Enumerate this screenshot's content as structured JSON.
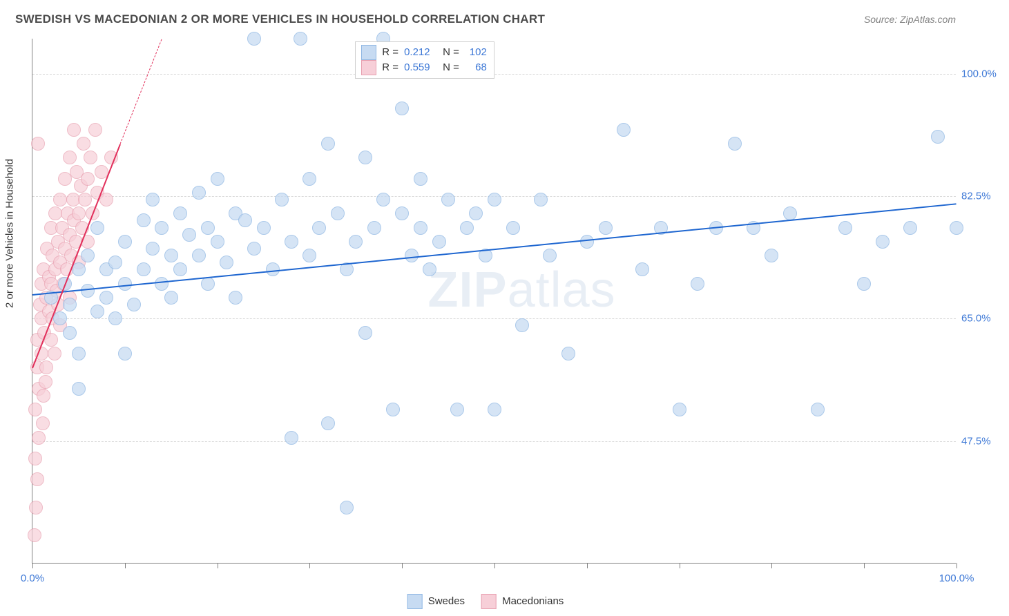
{
  "title": "SWEDISH VS MACEDONIAN 2 OR MORE VEHICLES IN HOUSEHOLD CORRELATION CHART",
  "source": "Source: ZipAtlas.com",
  "watermark_a": "ZIP",
  "watermark_b": "atlas",
  "y_axis_title": "2 or more Vehicles in Household",
  "chart": {
    "type": "scatter",
    "xlim": [
      0,
      100
    ],
    "ylim": [
      30,
      105
    ],
    "background": "#ffffff",
    "grid_color": "#d9d9d9",
    "axis_color": "#808080",
    "label_color": "#3d78d6",
    "y_gridlines": [
      47.5,
      65.0,
      82.5,
      100.0
    ],
    "y_labels": [
      "47.5%",
      "65.0%",
      "82.5%",
      "100.0%"
    ],
    "x_ticks": [
      0,
      10,
      20,
      30,
      40,
      50,
      60,
      70,
      80,
      90,
      100
    ],
    "x_labels_shown": {
      "0": "0.0%",
      "100": "100.0%"
    },
    "marker_radius": 9,
    "marker_border": 1,
    "series": {
      "swedes": {
        "label": "Swedes",
        "fill": "#c7dbf2",
        "stroke": "#8fb7e3",
        "fill_opacity": 0.75,
        "trend": {
          "color": "#1e66d0",
          "width": 2.5,
          "solid_from_x": 0,
          "solid_from_y": 68.5,
          "solid_to_x": 100,
          "solid_to_y": 81.5
        },
        "R": "0.212",
        "N": "102",
        "points": [
          [
            2,
            68
          ],
          [
            3,
            65
          ],
          [
            3.5,
            70
          ],
          [
            4,
            67
          ],
          [
            4,
            63
          ],
          [
            5,
            72
          ],
          [
            5,
            60
          ],
          [
            5,
            55
          ],
          [
            6,
            69
          ],
          [
            6,
            74
          ],
          [
            7,
            66
          ],
          [
            7,
            78
          ],
          [
            8,
            72
          ],
          [
            8,
            68
          ],
          [
            9,
            73
          ],
          [
            9,
            65
          ],
          [
            10,
            76
          ],
          [
            10,
            70
          ],
          [
            10,
            60
          ],
          [
            11,
            67
          ],
          [
            12,
            79
          ],
          [
            12,
            72
          ],
          [
            13,
            75
          ],
          [
            13,
            82
          ],
          [
            14,
            70
          ],
          [
            14,
            78
          ],
          [
            15,
            74
          ],
          [
            15,
            68
          ],
          [
            16,
            80
          ],
          [
            16,
            72
          ],
          [
            17,
            77
          ],
          [
            18,
            74
          ],
          [
            18,
            83
          ],
          [
            19,
            70
          ],
          [
            19,
            78
          ],
          [
            20,
            76
          ],
          [
            20,
            85
          ],
          [
            21,
            73
          ],
          [
            22,
            80
          ],
          [
            22,
            68
          ],
          [
            23,
            79
          ],
          [
            24,
            105
          ],
          [
            24,
            75
          ],
          [
            25,
            78
          ],
          [
            26,
            72
          ],
          [
            27,
            82
          ],
          [
            28,
            48
          ],
          [
            28,
            76
          ],
          [
            29,
            105
          ],
          [
            30,
            74
          ],
          [
            30,
            85
          ],
          [
            31,
            78
          ],
          [
            32,
            50
          ],
          [
            32,
            90
          ],
          [
            33,
            80
          ],
          [
            34,
            72
          ],
          [
            34,
            38
          ],
          [
            35,
            76
          ],
          [
            36,
            88
          ],
          [
            36,
            63
          ],
          [
            37,
            78
          ],
          [
            38,
            82
          ],
          [
            38,
            105
          ],
          [
            39,
            52
          ],
          [
            40,
            80
          ],
          [
            40,
            95
          ],
          [
            41,
            74
          ],
          [
            42,
            78
          ],
          [
            42,
            85
          ],
          [
            43,
            72
          ],
          [
            44,
            76
          ],
          [
            45,
            82
          ],
          [
            46,
            52
          ],
          [
            47,
            78
          ],
          [
            48,
            80
          ],
          [
            49,
            74
          ],
          [
            50,
            52
          ],
          [
            50,
            82
          ],
          [
            52,
            78
          ],
          [
            53,
            64
          ],
          [
            55,
            82
          ],
          [
            56,
            74
          ],
          [
            58,
            60
          ],
          [
            60,
            76
          ],
          [
            62,
            78
          ],
          [
            64,
            92
          ],
          [
            66,
            72
          ],
          [
            68,
            78
          ],
          [
            70,
            52
          ],
          [
            72,
            70
          ],
          [
            74,
            78
          ],
          [
            76,
            90
          ],
          [
            78,
            78
          ],
          [
            80,
            74
          ],
          [
            82,
            80
          ],
          [
            85,
            52
          ],
          [
            88,
            78
          ],
          [
            90,
            70
          ],
          [
            92,
            76
          ],
          [
            95,
            78
          ],
          [
            98,
            91
          ],
          [
            100,
            78
          ]
        ]
      },
      "macedonians": {
        "label": "Macedonians",
        "fill": "#f7cfd8",
        "stroke": "#e8a0b0",
        "fill_opacity": 0.7,
        "trend": {
          "color": "#e22f5b",
          "width": 2,
          "solid_from_x": 0,
          "solid_from_y": 58,
          "solid_to_x": 9.5,
          "solid_to_y": 90,
          "dash_to_x": 14,
          "dash_to_y": 105
        },
        "R": "0.559",
        "N": "68",
        "points": [
          [
            0.3,
            45
          ],
          [
            0.3,
            52
          ],
          [
            0.5,
            58
          ],
          [
            0.5,
            62
          ],
          [
            0.7,
            55
          ],
          [
            0.7,
            48
          ],
          [
            0.8,
            67
          ],
          [
            1,
            60
          ],
          [
            1,
            65
          ],
          [
            1,
            70
          ],
          [
            1.2,
            54
          ],
          [
            1.2,
            72
          ],
          [
            1.3,
            63
          ],
          [
            1.5,
            68
          ],
          [
            1.5,
            58
          ],
          [
            1.6,
            75
          ],
          [
            1.8,
            66
          ],
          [
            1.8,
            71
          ],
          [
            2,
            62
          ],
          [
            2,
            70
          ],
          [
            2,
            78
          ],
          [
            2.2,
            65
          ],
          [
            2.2,
            74
          ],
          [
            2.4,
            60
          ],
          [
            2.5,
            72
          ],
          [
            2.5,
            80
          ],
          [
            2.6,
            69
          ],
          [
            2.8,
            76
          ],
          [
            2.8,
            67
          ],
          [
            3,
            73
          ],
          [
            3,
            82
          ],
          [
            3,
            64
          ],
          [
            3.2,
            78
          ],
          [
            3.4,
            70
          ],
          [
            3.5,
            75
          ],
          [
            3.5,
            85
          ],
          [
            3.7,
            72
          ],
          [
            3.8,
            80
          ],
          [
            4,
            77
          ],
          [
            4,
            68
          ],
          [
            4,
            88
          ],
          [
            4.2,
            74
          ],
          [
            4.4,
            82
          ],
          [
            4.5,
            79
          ],
          [
            4.5,
            92
          ],
          [
            4.7,
            76
          ],
          [
            4.8,
            86
          ],
          [
            5,
            80
          ],
          [
            5,
            73
          ],
          [
            5.2,
            84
          ],
          [
            5.4,
            78
          ],
          [
            5.5,
            90
          ],
          [
            5.7,
            82
          ],
          [
            6,
            85
          ],
          [
            6,
            76
          ],
          [
            6.3,
            88
          ],
          [
            6.5,
            80
          ],
          [
            6.8,
            92
          ],
          [
            7,
            83
          ],
          [
            0.5,
            42
          ],
          [
            0.6,
            90
          ],
          [
            1.1,
            50
          ],
          [
            1.4,
            56
          ],
          [
            7.5,
            86
          ],
          [
            8,
            82
          ],
          [
            8.5,
            88
          ],
          [
            0.2,
            34
          ],
          [
            0.4,
            38
          ]
        ]
      }
    }
  },
  "stats_legend": {
    "rows": [
      {
        "swatch_fill": "#c7dbf2",
        "swatch_stroke": "#8fb7e3",
        "r_label": "R =",
        "r_val": "0.212",
        "n_label": "N =",
        "n_val": "102"
      },
      {
        "swatch_fill": "#f7cfd8",
        "swatch_stroke": "#e8a0b0",
        "r_label": "R =",
        "r_val": "0.559",
        "n_label": "N =",
        "n_val": "68"
      }
    ]
  }
}
